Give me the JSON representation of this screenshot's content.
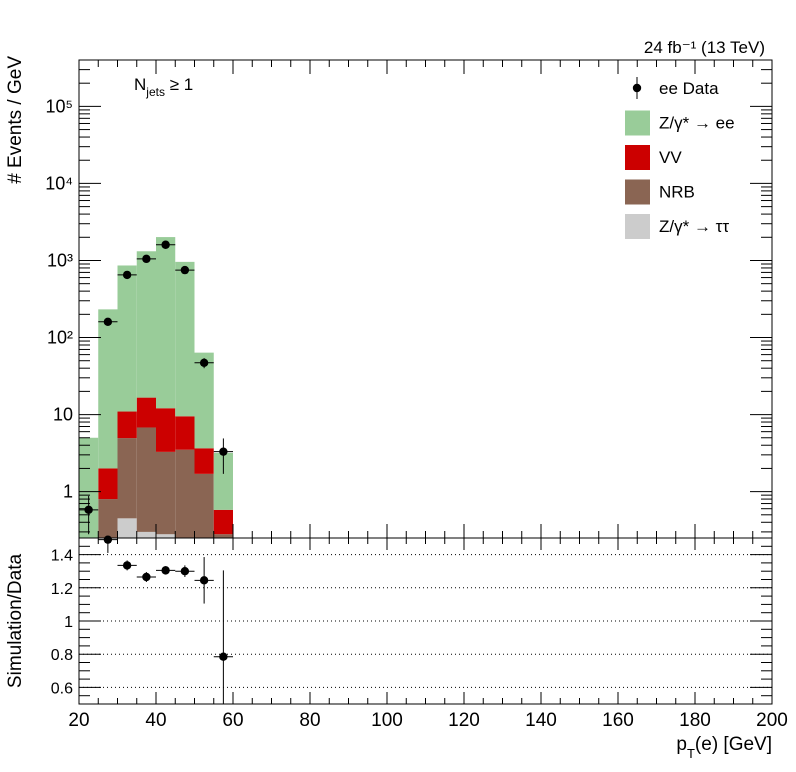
{
  "chart_data": [
    {
      "type": "bar",
      "stacked": true,
      "scale": "log",
      "lumi_label": "24 fb⁻¹ (13 TeV)",
      "selection_label": "N_jets ≥ 1",
      "ylabel": "# Events / GeV",
      "xlim": [
        20,
        200
      ],
      "ylim": [
        0.25,
        400000
      ],
      "y_ticks": [
        {
          "value": 1,
          "label": "1"
        },
        {
          "value": 10,
          "label": "10"
        },
        {
          "value": 100,
          "label": "10²"
        },
        {
          "value": 1000,
          "label": "10³"
        },
        {
          "value": 10000,
          "label": "10⁴"
        },
        {
          "value": 100000,
          "label": "10⁵"
        }
      ],
      "bin_edges": [
        20,
        25,
        30,
        35,
        40,
        45,
        50,
        55,
        60
      ],
      "series": [
        {
          "name": "Z/γ* → ττ",
          "color": "#cccccc",
          "values": [
            0,
            0,
            0.45,
            0.3,
            0.28,
            0.2,
            0,
            0
          ]
        },
        {
          "name": "NRB",
          "color": "#8a6553",
          "values": [
            0,
            0.8,
            4.5,
            6.5,
            3.0,
            3.3,
            1.7,
            0.28
          ]
        },
        {
          "name": "VV",
          "color": "#cc0000",
          "values": [
            0,
            1.2,
            6.0,
            9.8,
            8.8,
            6.0,
            1.95,
            0.3
          ]
        },
        {
          "name": "Z/γ* → ee",
          "color": "#99cc99",
          "values": [
            5,
            230,
            850,
            1300,
            2000,
            950,
            60,
            2.6
          ]
        }
      ],
      "data": {
        "name": "ee Data",
        "x": [
          22.5,
          27.5,
          32.5,
          37.5,
          42.5,
          47.5,
          52.5,
          57.5
        ],
        "y": [
          0.58,
          160,
          650,
          1050,
          1600,
          750,
          47,
          3.3
        ],
        "yerr": [
          0.3,
          13,
          25,
          32,
          40,
          27,
          7,
          1.6
        ]
      },
      "legend_position": "top-right"
    },
    {
      "type": "scatter",
      "ylabel": "Simulation/Data",
      "xlabel": "p_T(e) [GeV]",
      "xlim": [
        20,
        200
      ],
      "ylim": [
        0.5,
        1.5
      ],
      "x_ticks": [
        20,
        40,
        60,
        80,
        100,
        120,
        140,
        160,
        180,
        200
      ],
      "y_ticks": [
        0.6,
        0.8,
        1,
        1.2,
        1.4
      ],
      "y_tick_labels": [
        "0.6",
        "0.8",
        "1",
        "1.2",
        "1.4"
      ],
      "grid": true,
      "x": [
        27.5,
        32.5,
        37.5,
        42.5,
        47.5,
        52.5,
        57.5
      ],
      "y": [
        1.49,
        1.335,
        1.265,
        1.305,
        1.3,
        1.245,
        0.785
      ],
      "yerr": [
        0.08,
        0.03,
        0.03,
        0.025,
        0.035,
        0.14,
        0.52
      ]
    }
  ]
}
